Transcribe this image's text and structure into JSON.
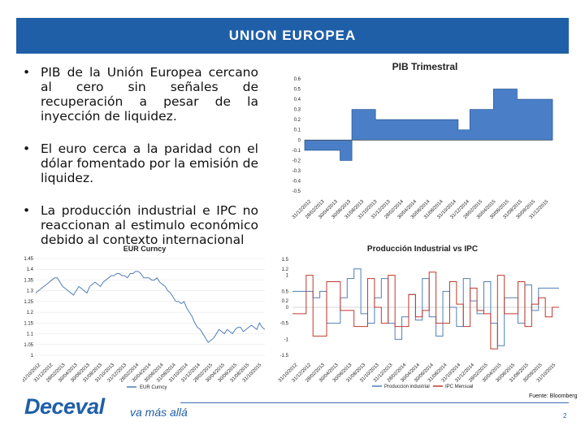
{
  "header": {
    "title": "UNION EUROPEA"
  },
  "bullets": [
    "PIB de la Unión Europea cercano al cero sin señales de recuperación a pesar de la inyección de liquidez.",
    "El euro cerca a la paridad con el dólar fomentado por la emisión de liquidez.",
    "La producción industrial e IPC no reaccionan al estimulo económico debido al contexto internacional"
  ],
  "bullet_symbol": "•",
  "footer": {
    "logo": "Deceval",
    "tagline": "va más allá",
    "source": "Fuente: Bloomberg",
    "page": "2"
  },
  "colors": {
    "header": "#1f5fa8",
    "pib": "#4a7fc8",
    "eur": "#4f7fb7",
    "prod": "#4f7fb7",
    "ipc": "#c0392b"
  },
  "chart_data": [
    {
      "type": "area",
      "title": "PIB Trimestral",
      "x": [
        "31/12/2012",
        "28/02/2013",
        "30/04/2013",
        "30/06/2013",
        "31/08/2013",
        "31/10/2013",
        "31/12/2013",
        "28/02/2014",
        "30/04/2014",
        "30/06/2014",
        "31/08/2014",
        "31/10/2014",
        "31/12/2014",
        "28/02/2015",
        "30/04/2015",
        "30/06/2015",
        "31/08/2015",
        "30/09/2015",
        "31/10/2015",
        "30/11/2015",
        "31/12/2015"
      ],
      "values": [
        -0.1,
        -0.1,
        -0.1,
        -0.2,
        0.3,
        0.3,
        0.2,
        0.2,
        0.2,
        0.2,
        0.2,
        0.2,
        0.2,
        0.1,
        0.3,
        0.3,
        0.5,
        0.5,
        0.4,
        0.4,
        0.4
      ],
      "ylim": [
        -0.5,
        0.6
      ],
      "yticks": [
        "-0.5",
        "-0.4",
        "-0.3",
        "-0.2",
        "-0.1",
        "0",
        "0.1",
        "0.2",
        "0.3",
        "0.4",
        "0.5",
        "0.6"
      ],
      "xticks": [
        "31/12/2012",
        "28/02/2013",
        "30/04/2013",
        "30/06/2013",
        "31/08/2013",
        "31/10/2013",
        "31/12/2013",
        "28/02/2014",
        "30/04/2014",
        "30/06/2014",
        "31/08/2014",
        "31/10/2014",
        "31/12/2014",
        "28/02/2015",
        "30/04/2015",
        "30/06/2015",
        "31/08/2015",
        "30/09/2015",
        "31/12/2015"
      ]
    },
    {
      "type": "line",
      "title": "EUR Curncy",
      "legend": [
        "EUR Curncy"
      ],
      "ylim": [
        1,
        1.45
      ],
      "yticks": [
        "1",
        "1.05",
        "1.1",
        "1.15",
        "1.2",
        "1.25",
        "1.3",
        "1.35",
        "1.4",
        "1.45"
      ],
      "xticks": [
        "31/10/2012",
        "31/12/2012",
        "28/02/2013",
        "30/04/2013",
        "30/06/2013",
        "31/08/2013",
        "31/10/2013",
        "31/12/2013",
        "28/02/2014",
        "30/04/2014",
        "30/06/2014",
        "31/08/2014",
        "31/10/2014",
        "31/12/2014",
        "28/02/2015",
        "30/04/2015",
        "30/06/2015",
        "31/08/2015",
        "31/10/2015"
      ],
      "values": [
        1.29,
        1.3,
        1.31,
        1.32,
        1.33,
        1.34,
        1.35,
        1.36,
        1.36,
        1.34,
        1.32,
        1.31,
        1.3,
        1.29,
        1.28,
        1.3,
        1.32,
        1.31,
        1.3,
        1.29,
        1.32,
        1.33,
        1.34,
        1.33,
        1.32,
        1.34,
        1.35,
        1.36,
        1.37,
        1.37,
        1.38,
        1.38,
        1.37,
        1.37,
        1.36,
        1.38,
        1.38,
        1.39,
        1.39,
        1.38,
        1.36,
        1.36,
        1.36,
        1.35,
        1.35,
        1.36,
        1.34,
        1.33,
        1.32,
        1.3,
        1.29,
        1.27,
        1.25,
        1.25,
        1.24,
        1.25,
        1.22,
        1.2,
        1.18,
        1.15,
        1.13,
        1.12,
        1.1,
        1.08,
        1.06,
        1.07,
        1.08,
        1.1,
        1.12,
        1.11,
        1.1,
        1.12,
        1.11,
        1.1,
        1.12,
        1.13,
        1.13,
        1.11,
        1.12,
        1.13,
        1.14,
        1.13,
        1.12,
        1.15,
        1.13,
        1.12
      ]
    },
    {
      "type": "line",
      "title": "Producción  Industrial vs IPC",
      "ylim": [
        -1.5,
        1.5
      ],
      "yticks": [
        "-1.5",
        "-1",
        "-0.5",
        "0",
        "0.2",
        "0.5",
        "1",
        "1.2",
        "1.5"
      ],
      "xticks": [
        "31/10/2012",
        "31/12/2012",
        "28/02/2013",
        "30/04/2013",
        "30/06/2013",
        "31/08/2013",
        "31/10/2013",
        "31/12/2013",
        "28/02/2014",
        "30/04/2014",
        "30/06/2014",
        "31/08/2014",
        "31/10/2014",
        "31/12/2014",
        "28/02/2015",
        "30/04/2015",
        "30/06/2015",
        "31/08/2015",
        "30/09/2015",
        "31/10/2015"
      ],
      "series": [
        {
          "name": "Produccion industrial",
          "values": [
            0.5,
            0.5,
            0.5,
            0.3,
            0.5,
            -0.5,
            -0.5,
            0.3,
            0.9,
            1.2,
            -0.2,
            -0.5,
            0.3,
            0.9,
            -0.5,
            -1.0,
            -0.3,
            0.4,
            -0.4,
            0.9,
            -0.3,
            -0.9,
            0.5,
            0.0,
            -0.6,
            0.9,
            0.2,
            -0.2,
            0.8,
            -0.5,
            -1.2,
            0.3,
            0.3,
            -0.5,
            0.7,
            -0.1,
            0.6,
            0.6,
            0.6
          ]
        },
        {
          "name": "IPC Mensual",
          "values": [
            -0.2,
            -0.2,
            1.0,
            -0.9,
            -0.9,
            0.8,
            0.8,
            -0.1,
            -0.1,
            -0.6,
            -0.6,
            0.9,
            0.0,
            -0.5,
            1.0,
            -0.6,
            -0.6,
            0.4,
            -0.3,
            -0.1,
            1.1,
            -0.5,
            -0.5,
            0.8,
            0.1,
            -0.6,
            0.6,
            -0.1,
            -0.2,
            -1.3,
            1.0,
            -0.2,
            -0.2,
            0.8,
            -0.6,
            0.1,
            0.3,
            -0.3,
            0.0
          ]
        }
      ]
    }
  ]
}
